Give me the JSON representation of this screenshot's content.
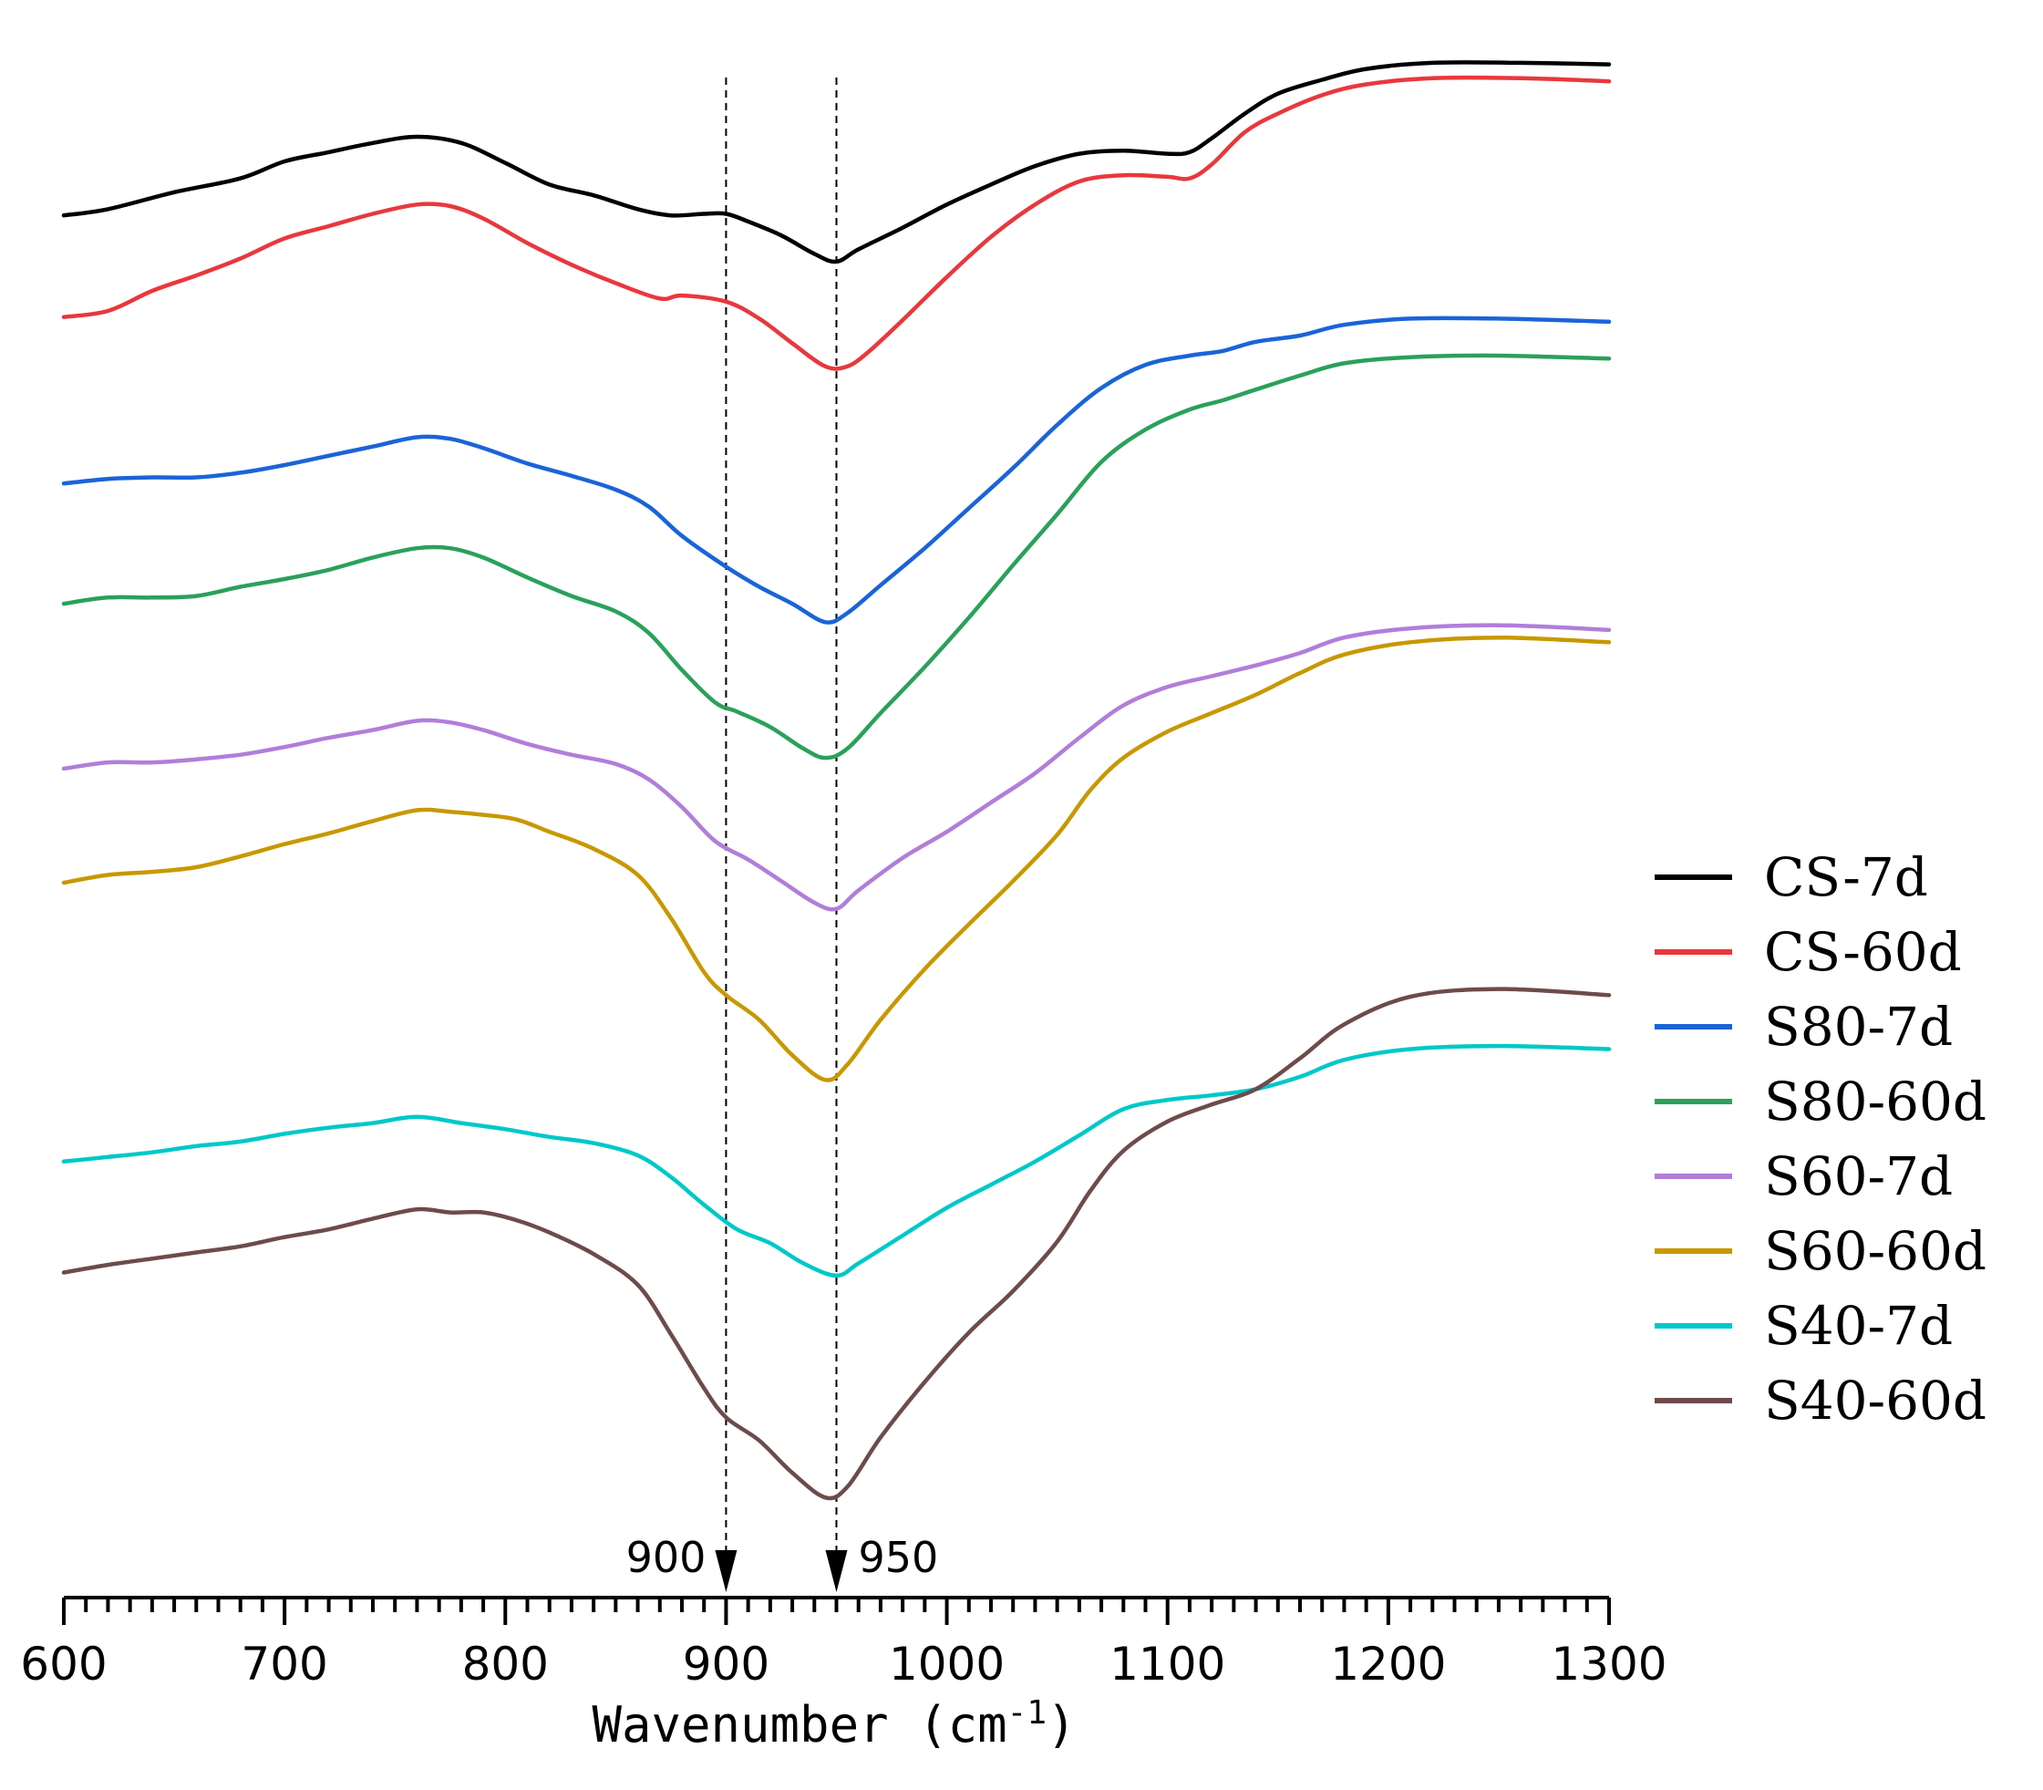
{
  "chart_data": {
    "type": "line",
    "title": "",
    "xlabel": "Wavenumber (cm",
    "xlabel_sup": "-1",
    "xlabel_suffix": ")",
    "ylabel": "",
    "xlim": [
      600,
      1300
    ],
    "ylim": [
      0,
      1
    ],
    "x_major_ticks": [
      600,
      700,
      800,
      900,
      1000,
      1100,
      1200,
      1300
    ],
    "x_tick_labels": [
      "600",
      "700",
      "800",
      "900",
      "1000",
      "1100",
      "1200",
      "1300"
    ],
    "x_minor_step": 10,
    "grid": false,
    "legend_position": "right",
    "reference_lines": [
      {
        "x": 900,
        "label": "900"
      },
      {
        "x": 950,
        "label": "950"
      }
    ],
    "series": [
      {
        "name": "CS-7d",
        "color": "#000000",
        "points": [
          [
            600,
            0.878
          ],
          [
            620,
            0.882
          ],
          [
            650,
            0.893
          ],
          [
            680,
            0.902
          ],
          [
            700,
            0.913
          ],
          [
            720,
            0.919
          ],
          [
            740,
            0.925
          ],
          [
            760,
            0.929
          ],
          [
            780,
            0.925
          ],
          [
            800,
            0.912
          ],
          [
            820,
            0.898
          ],
          [
            840,
            0.891
          ],
          [
            860,
            0.882
          ],
          [
            875,
            0.878
          ],
          [
            890,
            0.879
          ],
          [
            900,
            0.879
          ],
          [
            910,
            0.874
          ],
          [
            925,
            0.865
          ],
          [
            940,
            0.853
          ],
          [
            950,
            0.848
          ],
          [
            960,
            0.856
          ],
          [
            980,
            0.87
          ],
          [
            1000,
            0.885
          ],
          [
            1020,
            0.898
          ],
          [
            1040,
            0.91
          ],
          [
            1060,
            0.918
          ],
          [
            1080,
            0.92
          ],
          [
            1100,
            0.918
          ],
          [
            1110,
            0.919
          ],
          [
            1120,
            0.928
          ],
          [
            1135,
            0.944
          ],
          [
            1150,
            0.957
          ],
          [
            1170,
            0.966
          ],
          [
            1190,
            0.973
          ],
          [
            1220,
            0.977
          ],
          [
            1260,
            0.977
          ],
          [
            1300,
            0.976
          ]
        ]
      },
      {
        "name": "CS-60d",
        "color": "#e8383d",
        "points": [
          [
            600,
            0.812
          ],
          [
            620,
            0.816
          ],
          [
            640,
            0.829
          ],
          [
            660,
            0.839
          ],
          [
            680,
            0.85
          ],
          [
            700,
            0.863
          ],
          [
            720,
            0.871
          ],
          [
            740,
            0.879
          ],
          [
            760,
            0.885
          ],
          [
            775,
            0.884
          ],
          [
            790,
            0.876
          ],
          [
            810,
            0.86
          ],
          [
            830,
            0.846
          ],
          [
            850,
            0.834
          ],
          [
            870,
            0.824
          ],
          [
            880,
            0.826
          ],
          [
            900,
            0.822
          ],
          [
            915,
            0.811
          ],
          [
            930,
            0.795
          ],
          [
            945,
            0.78
          ],
          [
            955,
            0.78
          ],
          [
            965,
            0.79
          ],
          [
            980,
            0.81
          ],
          [
            1000,
            0.838
          ],
          [
            1020,
            0.864
          ],
          [
            1040,
            0.885
          ],
          [
            1060,
            0.9
          ],
          [
            1080,
            0.904
          ],
          [
            1100,
            0.903
          ],
          [
            1110,
            0.902
          ],
          [
            1120,
            0.911
          ],
          [
            1135,
            0.932
          ],
          [
            1150,
            0.944
          ],
          [
            1170,
            0.956
          ],
          [
            1190,
            0.963
          ],
          [
            1220,
            0.967
          ],
          [
            1260,
            0.967
          ],
          [
            1300,
            0.965
          ]
        ]
      },
      {
        "name": "S80-7d",
        "color": "#1a64d8",
        "points": [
          [
            600,
            0.704
          ],
          [
            620,
            0.707
          ],
          [
            640,
            0.708
          ],
          [
            660,
            0.708
          ],
          [
            680,
            0.711
          ],
          [
            700,
            0.716
          ],
          [
            720,
            0.722
          ],
          [
            740,
            0.728
          ],
          [
            760,
            0.734
          ],
          [
            775,
            0.733
          ],
          [
            790,
            0.727
          ],
          [
            810,
            0.717
          ],
          [
            830,
            0.709
          ],
          [
            850,
            0.7
          ],
          [
            865,
            0.689
          ],
          [
            880,
            0.67
          ],
          [
            900,
            0.65
          ],
          [
            915,
            0.637
          ],
          [
            930,
            0.626
          ],
          [
            945,
            0.614
          ],
          [
            955,
            0.62
          ],
          [
            970,
            0.638
          ],
          [
            990,
            0.662
          ],
          [
            1010,
            0.688
          ],
          [
            1030,
            0.714
          ],
          [
            1050,
            0.742
          ],
          [
            1070,
            0.766
          ],
          [
            1090,
            0.781
          ],
          [
            1110,
            0.787
          ],
          [
            1125,
            0.79
          ],
          [
            1140,
            0.796
          ],
          [
            1160,
            0.8
          ],
          [
            1180,
            0.807
          ],
          [
            1210,
            0.811
          ],
          [
            1250,
            0.811
          ],
          [
            1300,
            0.809
          ]
        ]
      },
      {
        "name": "S80-60d",
        "color": "#2aa15a",
        "points": [
          [
            600,
            0.626
          ],
          [
            620,
            0.63
          ],
          [
            640,
            0.63
          ],
          [
            660,
            0.631
          ],
          [
            680,
            0.637
          ],
          [
            700,
            0.642
          ],
          [
            720,
            0.648
          ],
          [
            740,
            0.656
          ],
          [
            760,
            0.662
          ],
          [
            775,
            0.662
          ],
          [
            790,
            0.656
          ],
          [
            810,
            0.643
          ],
          [
            830,
            0.631
          ],
          [
            850,
            0.621
          ],
          [
            865,
            0.607
          ],
          [
            880,
            0.583
          ],
          [
            895,
            0.562
          ],
          [
            905,
            0.556
          ],
          [
            920,
            0.546
          ],
          [
            935,
            0.532
          ],
          [
            945,
            0.526
          ],
          [
            955,
            0.532
          ],
          [
            970,
            0.555
          ],
          [
            990,
            0.585
          ],
          [
            1010,
            0.617
          ],
          [
            1030,
            0.651
          ],
          [
            1050,
            0.684
          ],
          [
            1070,
            0.718
          ],
          [
            1090,
            0.739
          ],
          [
            1110,
            0.752
          ],
          [
            1125,
            0.758
          ],
          [
            1140,
            0.765
          ],
          [
            1160,
            0.774
          ],
          [
            1180,
            0.782
          ],
          [
            1210,
            0.786
          ],
          [
            1250,
            0.787
          ],
          [
            1300,
            0.785
          ]
        ]
      },
      {
        "name": "S60-7d",
        "color": "#b17ed9",
        "points": [
          [
            600,
            0.519
          ],
          [
            620,
            0.523
          ],
          [
            640,
            0.523
          ],
          [
            660,
            0.525
          ],
          [
            680,
            0.528
          ],
          [
            700,
            0.533
          ],
          [
            720,
            0.539
          ],
          [
            740,
            0.544
          ],
          [
            760,
            0.55
          ],
          [
            775,
            0.549
          ],
          [
            790,
            0.544
          ],
          [
            810,
            0.535
          ],
          [
            830,
            0.528
          ],
          [
            850,
            0.522
          ],
          [
            865,
            0.512
          ],
          [
            880,
            0.494
          ],
          [
            895,
            0.472
          ],
          [
            910,
            0.46
          ],
          [
            925,
            0.446
          ],
          [
            940,
            0.432
          ],
          [
            950,
            0.428
          ],
          [
            960,
            0.44
          ],
          [
            980,
            0.461
          ],
          [
            1000,
            0.478
          ],
          [
            1020,
            0.497
          ],
          [
            1040,
            0.516
          ],
          [
            1060,
            0.539
          ],
          [
            1080,
            0.56
          ],
          [
            1100,
            0.572
          ],
          [
            1120,
            0.579
          ],
          [
            1140,
            0.586
          ],
          [
            1160,
            0.594
          ],
          [
            1180,
            0.604
          ],
          [
            1210,
            0.61
          ],
          [
            1250,
            0.612
          ],
          [
            1300,
            0.609
          ]
        ]
      },
      {
        "name": "S60-60d",
        "color": "#c89800",
        "points": [
          [
            600,
            0.445
          ],
          [
            620,
            0.45
          ],
          [
            640,
            0.452
          ],
          [
            660,
            0.455
          ],
          [
            680,
            0.462
          ],
          [
            700,
            0.47
          ],
          [
            720,
            0.477
          ],
          [
            740,
            0.485
          ],
          [
            760,
            0.492
          ],
          [
            775,
            0.491
          ],
          [
            790,
            0.489
          ],
          [
            805,
            0.486
          ],
          [
            820,
            0.478
          ],
          [
            840,
            0.467
          ],
          [
            860,
            0.45
          ],
          [
            875,
            0.422
          ],
          [
            890,
            0.387
          ],
          [
            900,
            0.372
          ],
          [
            915,
            0.356
          ],
          [
            930,
            0.333
          ],
          [
            945,
            0.317
          ],
          [
            955,
            0.327
          ],
          [
            970,
            0.356
          ],
          [
            990,
            0.389
          ],
          [
            1010,
            0.418
          ],
          [
            1030,
            0.446
          ],
          [
            1050,
            0.476
          ],
          [
            1065,
            0.505
          ],
          [
            1080,
            0.526
          ],
          [
            1100,
            0.543
          ],
          [
            1120,
            0.555
          ],
          [
            1140,
            0.567
          ],
          [
            1160,
            0.581
          ],
          [
            1180,
            0.593
          ],
          [
            1210,
            0.601
          ],
          [
            1250,
            0.604
          ],
          [
            1300,
            0.601
          ]
        ]
      },
      {
        "name": "S40-7d",
        "color": "#00c8c8",
        "points": [
          [
            600,
            0.264
          ],
          [
            620,
            0.267
          ],
          [
            640,
            0.27
          ],
          [
            660,
            0.274
          ],
          [
            680,
            0.277
          ],
          [
            700,
            0.282
          ],
          [
            720,
            0.286
          ],
          [
            740,
            0.289
          ],
          [
            760,
            0.293
          ],
          [
            780,
            0.289
          ],
          [
            800,
            0.285
          ],
          [
            820,
            0.28
          ],
          [
            840,
            0.276
          ],
          [
            860,
            0.268
          ],
          [
            875,
            0.254
          ],
          [
            890,
            0.236
          ],
          [
            905,
            0.22
          ],
          [
            920,
            0.211
          ],
          [
            935,
            0.198
          ],
          [
            950,
            0.19
          ],
          [
            960,
            0.198
          ],
          [
            980,
            0.216
          ],
          [
            1000,
            0.234
          ],
          [
            1020,
            0.249
          ],
          [
            1040,
            0.264
          ],
          [
            1060,
            0.281
          ],
          [
            1080,
            0.298
          ],
          [
            1100,
            0.304
          ],
          [
            1120,
            0.307
          ],
          [
            1140,
            0.311
          ],
          [
            1160,
            0.319
          ],
          [
            1180,
            0.33
          ],
          [
            1210,
            0.337
          ],
          [
            1250,
            0.339
          ],
          [
            1300,
            0.337
          ]
        ]
      },
      {
        "name": "S40-60d",
        "color": "#6e4b4b",
        "points": [
          [
            600,
            0.192
          ],
          [
            620,
            0.197
          ],
          [
            640,
            0.201
          ],
          [
            660,
            0.205
          ],
          [
            680,
            0.209
          ],
          [
            700,
            0.215
          ],
          [
            720,
            0.22
          ],
          [
            740,
            0.227
          ],
          [
            760,
            0.233
          ],
          [
            775,
            0.231
          ],
          [
            790,
            0.231
          ],
          [
            805,
            0.226
          ],
          [
            820,
            0.218
          ],
          [
            840,
            0.204
          ],
          [
            860,
            0.184
          ],
          [
            875,
            0.152
          ],
          [
            890,
            0.117
          ],
          [
            900,
            0.098
          ],
          [
            915,
            0.083
          ],
          [
            930,
            0.062
          ],
          [
            945,
            0.046
          ],
          [
            955,
            0.053
          ],
          [
            970,
            0.085
          ],
          [
            990,
            0.121
          ],
          [
            1010,
            0.153
          ],
          [
            1030,
            0.18
          ],
          [
            1050,
            0.212
          ],
          [
            1065,
            0.245
          ],
          [
            1080,
            0.271
          ],
          [
            1100,
            0.29
          ],
          [
            1120,
            0.301
          ],
          [
            1140,
            0.311
          ],
          [
            1160,
            0.331
          ],
          [
            1180,
            0.353
          ],
          [
            1210,
            0.371
          ],
          [
            1250,
            0.376
          ],
          [
            1300,
            0.372
          ]
        ]
      }
    ]
  }
}
